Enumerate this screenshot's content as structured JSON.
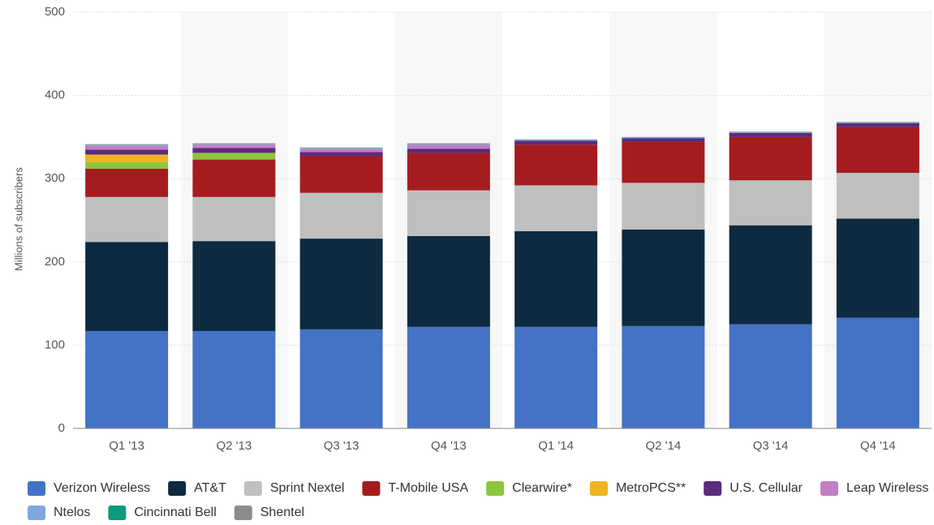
{
  "chart_data": {
    "type": "stacked_bar",
    "y_label": "Millions of subscribers",
    "categories": [
      "Q1 '13",
      "Q2 '13",
      "Q3 '13",
      "Q4 '13",
      "Q1 '14",
      "Q2 '14",
      "Q3 '14",
      "Q4 '14"
    ],
    "series": [
      {
        "name": "Verizon Wireless",
        "color": "#4472c4",
        "values": [
          117,
          117,
          119,
          122,
          122,
          123,
          125,
          133
        ]
      },
      {
        "name": "AT&T",
        "color": "#0d2a40",
        "values": [
          107,
          108,
          109,
          109,
          115,
          116,
          119,
          119
        ]
      },
      {
        "name": "Sprint Nextel",
        "color": "#bfbfbf",
        "values": [
          54,
          53,
          55,
          55,
          55,
          56,
          54,
          55
        ]
      },
      {
        "name": "T-Mobile USA",
        "color": "#a51c1f",
        "values": [
          34,
          45,
          44,
          45,
          49,
          49,
          52,
          55
        ]
      },
      {
        "name": "Clearwire*",
        "color": "#8cc63f",
        "values": [
          8,
          8,
          0,
          0,
          0,
          0,
          0,
          0
        ]
      },
      {
        "name": "MetroPCS**",
        "color": "#f0b323",
        "values": [
          9,
          0,
          0,
          0,
          0,
          0,
          0,
          0
        ]
      },
      {
        "name": "U.S. Cellular",
        "color": "#5c2a7e",
        "values": [
          6,
          6,
          5,
          5,
          4.7,
          4.5,
          5,
          4.7
        ]
      },
      {
        "name": "Leap Wireless",
        "color": "#c17fc4",
        "values": [
          5,
          4,
          4,
          5,
          0,
          0,
          0,
          0
        ]
      },
      {
        "name": "Ntelos",
        "color": "#7fa8e0",
        "values": [
          0.5,
          0.5,
          0.5,
          0.5,
          0.5,
          0.5,
          0.5,
          0.5
        ]
      },
      {
        "name": "Cincinnati Bell",
        "color": "#0e9a7f",
        "values": [
          0.5,
          0.5,
          0.5,
          0.5,
          0.5,
          0.5,
          0.5,
          0.5
        ]
      },
      {
        "name": "Shentel",
        "color": "#8c8c8c",
        "values": [
          0.5,
          0.5,
          0.5,
          0.5,
          0.5,
          0.5,
          0.5,
          0.5
        ]
      }
    ],
    "ylim": [
      0,
      500
    ],
    "yticks": [
      0,
      100,
      200,
      300,
      400,
      500
    ],
    "grid": true
  }
}
